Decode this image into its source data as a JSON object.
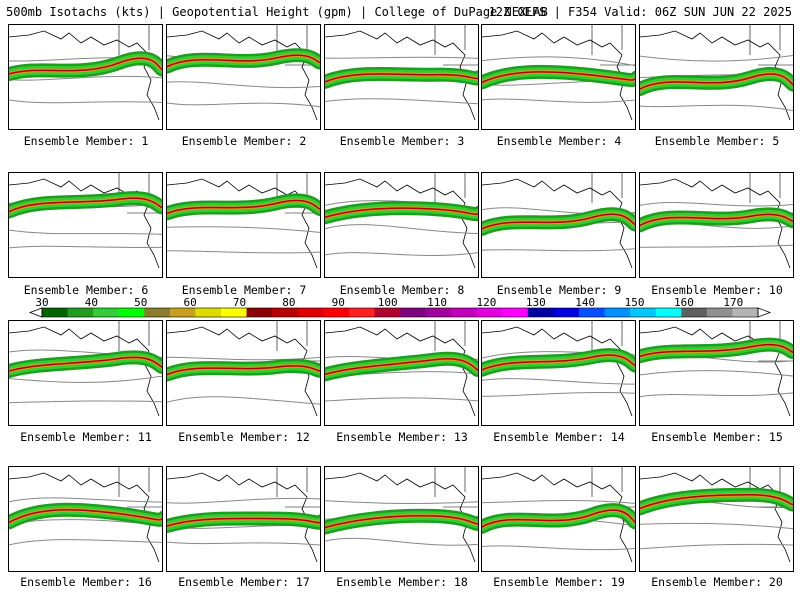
{
  "header": {
    "left_text": "500mb Isotachs (kts) | Geopotential Height (gpm) | College of DuPage NEXLAB",
    "right_text": "12Z GEFS | F354 Valid: 06Z SUN JUN 22 2025"
  },
  "panels": [
    {
      "label": "Ensemble Member: 1"
    },
    {
      "label": "Ensemble Member: 2"
    },
    {
      "label": "Ensemble Member: 3"
    },
    {
      "label": "Ensemble Member: 4"
    },
    {
      "label": "Ensemble Member: 5"
    },
    {
      "label": "Ensemble Member: 6"
    },
    {
      "label": "Ensemble Member: 7"
    },
    {
      "label": "Ensemble Member: 8"
    },
    {
      "label": "Ensemble Member: 9"
    },
    {
      "label": "Ensemble Member: 10"
    },
    {
      "label": "Ensemble Member: 11"
    },
    {
      "label": "Ensemble Member: 12"
    },
    {
      "label": "Ensemble Member: 13"
    },
    {
      "label": "Ensemble Member: 14"
    },
    {
      "label": "Ensemble Member: 15"
    },
    {
      "label": "Ensemble Member: 16"
    },
    {
      "label": "Ensemble Member: 17"
    },
    {
      "label": "Ensemble Member: 18"
    },
    {
      "label": "Ensemble Member: 19"
    },
    {
      "label": "Ensemble Member: 20"
    }
  ],
  "colorbar": {
    "unit": "kts",
    "labels": [
      "30",
      "40",
      "50",
      "60",
      "70",
      "80",
      "90",
      "100",
      "110",
      "120",
      "130",
      "140",
      "150",
      "160",
      "170"
    ],
    "colors": [
      "#006400",
      "#1e9e1e",
      "#32cd32",
      "#00ff00",
      "#8b7d2a",
      "#c8a020",
      "#dcdc00",
      "#ffff00",
      "#8b0000",
      "#b20000",
      "#dc0000",
      "#ff0000",
      "#ff2020",
      "#b00030",
      "#800080",
      "#a000a0",
      "#c000c0",
      "#e000e0",
      "#ff00ff",
      "#0000a0",
      "#0000dc",
      "#0050ff",
      "#0090ff",
      "#00c8ff",
      "#00ffff",
      "#606060",
      "#909090",
      "#b4b4b4"
    ]
  }
}
